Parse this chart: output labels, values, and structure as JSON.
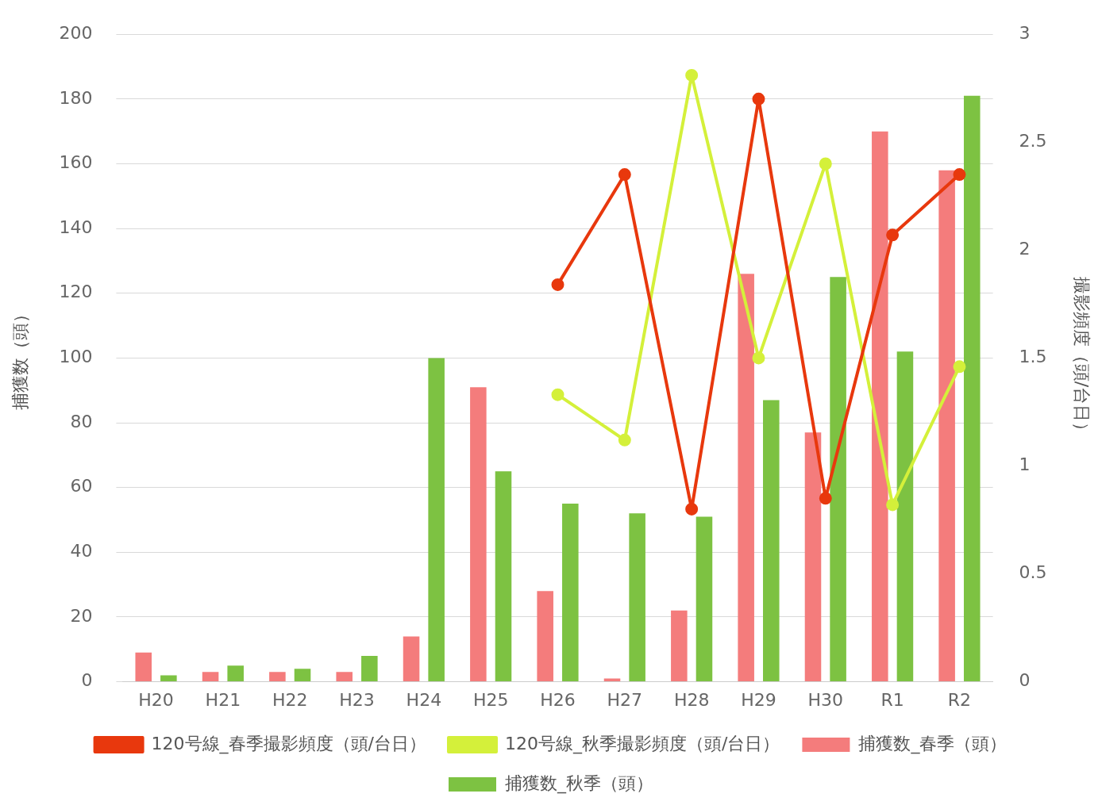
{
  "chart_data": {
    "type": "bar",
    "categories": [
      "H20",
      "H21",
      "H22",
      "H23",
      "H24",
      "H25",
      "H26",
      "H27",
      "H28",
      "H29",
      "H30",
      "R1",
      "R2"
    ],
    "ylabel": "捕獲数（頭）",
    "y2label": "撮影頻度（頭/台日）",
    "series": [
      {
        "name": "捕獲数_春季（頭）",
        "color": "#f47c7c",
        "values": [
          9,
          3,
          3,
          3,
          14,
          91,
          28,
          1,
          22,
          126,
          77,
          170,
          158
        ]
      },
      {
        "name": "捕獲数_秋季（頭）",
        "color": "#7dc242",
        "values": [
          2,
          5,
          4,
          8,
          100,
          65,
          55,
          52,
          51,
          87,
          125,
          102,
          181
        ]
      },
      {
        "name": "120号線_春季撮影頻度（頭/台日）",
        "type": "line",
        "axis": "y2",
        "marker": "circle",
        "color": "#e8380d",
        "values": [
          null,
          null,
          null,
          null,
          null,
          null,
          1.84,
          2.35,
          0.8,
          2.7,
          0.85,
          2.07,
          2.35
        ]
      },
      {
        "name": "120号線_秋季撮影頻度（頭/台日）",
        "type": "line",
        "axis": "y2",
        "marker": "circle",
        "color": "#d4f03a",
        "values": [
          null,
          null,
          null,
          null,
          null,
          null,
          1.33,
          1.12,
          2.81,
          1.5,
          2.4,
          0.82,
          1.46
        ]
      }
    ],
    "ylim": [
      0,
      200
    ],
    "yticks": [
      0,
      20,
      40,
      60,
      80,
      100,
      120,
      140,
      160,
      180,
      200
    ],
    "y2lim": [
      0,
      3
    ],
    "y2ticks": [
      0,
      0.5,
      1,
      1.5,
      2,
      2.5,
      3
    ],
    "grid": "y",
    "legend": "bottom"
  }
}
